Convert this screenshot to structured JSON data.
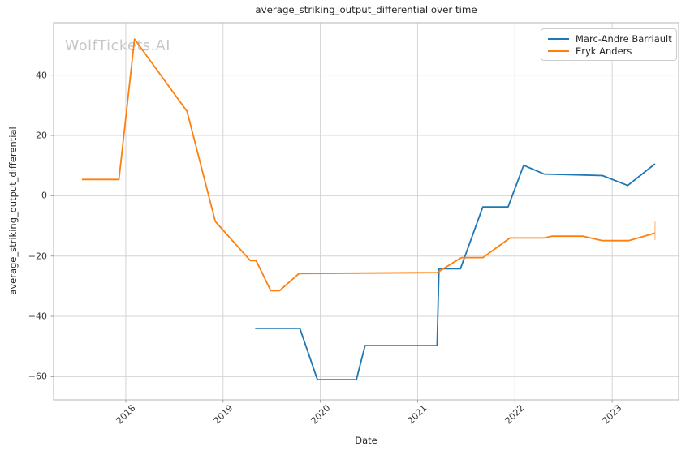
{
  "figure": {
    "watermark": "WolfTickets.AI"
  },
  "chart_data": {
    "type": "line",
    "title": "average_striking_output_differential over time",
    "xlabel": "Date",
    "ylabel": "average_striking_output_differential",
    "grid": true,
    "legend_position": "upper right",
    "x_axis": {
      "ticks": [
        2018,
        2019,
        2020,
        2021,
        2022,
        2023
      ],
      "range": [
        2017.258,
        2023.683
      ]
    },
    "y_axis": {
      "ticks": [
        -60,
        -40,
        -20,
        0,
        20,
        40
      ],
      "range": [
        -67.7,
        57.4
      ]
    },
    "series": [
      {
        "name": "Marc-Andre Barriault",
        "color": "#1f77b4",
        "points": [
          [
            2019.33,
            -44.0
          ],
          [
            2019.79,
            -44.0
          ],
          [
            2019.97,
            -61.0
          ],
          [
            2020.37,
            -61.0
          ],
          [
            2020.46,
            -49.7
          ],
          [
            2021.2,
            -49.7
          ],
          [
            2021.22,
            -24.2
          ],
          [
            2021.44,
            -24.2
          ],
          [
            2021.67,
            -3.7
          ],
          [
            2021.93,
            -3.7
          ],
          [
            2022.09,
            10.1
          ],
          [
            2022.3,
            7.2
          ],
          [
            2022.55,
            7.0
          ],
          [
            2022.9,
            6.7
          ],
          [
            2023.16,
            3.4
          ],
          [
            2023.44,
            10.6
          ]
        ]
      },
      {
        "name": "Eryk Anders",
        "color": "#ff7f0e",
        "points": [
          [
            2017.55,
            5.4
          ],
          [
            2017.93,
            5.4
          ],
          [
            2018.09,
            52.0
          ],
          [
            2018.63,
            28.0
          ],
          [
            2018.92,
            -8.5
          ],
          [
            2019.28,
            -21.5
          ],
          [
            2019.34,
            -21.5
          ],
          [
            2019.49,
            -31.5
          ],
          [
            2019.58,
            -31.5
          ],
          [
            2019.78,
            -25.8
          ],
          [
            2021.2,
            -25.5
          ],
          [
            2021.45,
            -20.5
          ],
          [
            2021.67,
            -20.5
          ],
          [
            2021.95,
            -14.0
          ],
          [
            2022.3,
            -14.0
          ],
          [
            2022.38,
            -13.4
          ],
          [
            2022.7,
            -13.4
          ],
          [
            2022.9,
            -14.9
          ],
          [
            2023.17,
            -14.9
          ],
          [
            2023.44,
            -12.4
          ]
        ],
        "final_point_error_bar": {
          "x": 2023.44,
          "y_low": -14.7,
          "y_high": -8.6
        }
      }
    ]
  },
  "colors": {
    "series_blue": "#1f77b4",
    "series_orange": "#ff7f0e",
    "gridline": "#d4d4d4",
    "spine": "#c0c0c0",
    "tick_mark": "#a0a0a0",
    "text": "#262626",
    "watermark": "#c7c7c7"
  }
}
